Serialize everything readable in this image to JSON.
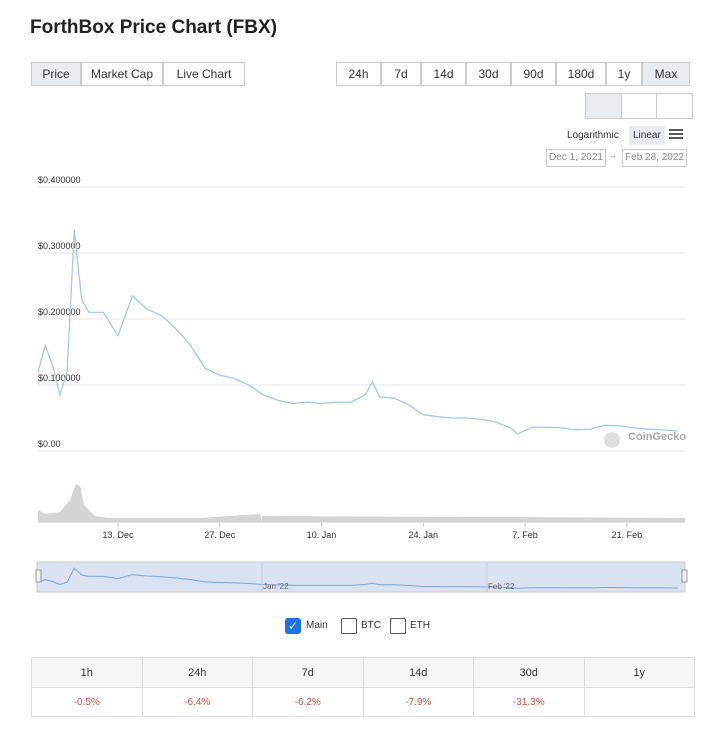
{
  "header": {
    "title": "ForthBox Price Chart (FBX)"
  },
  "tabs": [
    "Price",
    "Market Cap",
    "Live Chart"
  ],
  "ranges": [
    "24h",
    "7d",
    "14d",
    "30d",
    "90d",
    "180d",
    "1y",
    "Max"
  ],
  "scale": [
    "Logarithmic",
    "Linear"
  ],
  "date_range": {
    "from": "Dec 1, 2021",
    "to": "Feb 28, 2022"
  },
  "watermark": "CoinGecko",
  "navigator_labels": [
    "Jan '22",
    "Feb '22"
  ],
  "compare_options": [
    "BTC",
    "ETH"
  ],
  "chart_data": {
    "type": "line",
    "x": [
      "2021-12-02",
      "2021-12-03",
      "2021-12-04",
      "2021-12-05",
      "2021-12-06",
      "2021-12-07",
      "2021-12-08",
      "2021-12-09",
      "2021-12-10",
      "2021-12-11",
      "2021-12-13",
      "2021-12-15",
      "2021-12-17",
      "2021-12-19",
      "2021-12-21",
      "2021-12-23",
      "2021-12-25",
      "2021-12-27",
      "2021-12-29",
      "2021-12-31",
      "2022-01-02",
      "2022-01-04",
      "2022-01-06",
      "2022-01-08",
      "2022-01-10",
      "2022-01-12",
      "2022-01-14",
      "2022-01-16",
      "2022-01-17",
      "2022-01-18",
      "2022-01-20",
      "2022-01-22",
      "2022-01-24",
      "2022-01-26",
      "2022-01-28",
      "2022-01-30",
      "2022-02-01",
      "2022-02-03",
      "2022-02-05",
      "2022-02-06",
      "2022-02-08",
      "2022-02-10",
      "2022-02-12",
      "2022-02-14",
      "2022-02-16",
      "2022-02-18",
      "2022-02-20",
      "2022-02-22",
      "2022-02-24",
      "2022-02-26",
      "2022-02-28"
    ],
    "series": [
      {
        "name": "Main",
        "color": "#a5c8ee",
        "values": [
          0.12,
          0.16,
          0.13,
          0.085,
          0.12,
          0.335,
          0.23,
          0.21,
          0.21,
          0.21,
          0.175,
          0.235,
          0.215,
          0.205,
          0.185,
          0.16,
          0.125,
          0.115,
          0.11,
          0.1,
          0.085,
          0.077,
          0.072,
          0.074,
          0.072,
          0.074,
          0.074,
          0.085,
          0.105,
          0.082,
          0.08,
          0.07,
          0.055,
          0.052,
          0.05,
          0.05,
          0.048,
          0.044,
          0.035,
          0.026,
          0.036,
          0.036,
          0.035,
          0.032,
          0.033,
          0.039,
          0.038,
          0.035,
          0.033,
          0.032,
          0.03
        ]
      }
    ],
    "xlim": [
      "2021-12-02",
      "2022-03-01"
    ],
    "xticks": [
      {
        "value": "2021-12-13",
        "label": "13. Dec"
      },
      {
        "value": "2021-12-27",
        "label": "27. Dec"
      },
      {
        "value": "2022-01-10",
        "label": "10. Jan"
      },
      {
        "value": "2022-01-24",
        "label": "24. Jan"
      },
      {
        "value": "2022-02-07",
        "label": "7. Feb"
      },
      {
        "value": "2022-02-21",
        "label": "21. Feb"
      }
    ],
    "ylim": [
      0,
      0.4
    ],
    "yticks": [
      {
        "value": 0,
        "label": "$0.00"
      },
      {
        "value": 0.1,
        "label": "$0.100000"
      },
      {
        "value": 0.2,
        "label": "$0.200000"
      },
      {
        "value": 0.3,
        "label": "$0.300000"
      },
      {
        "value": 0.4,
        "label": "$0.400000"
      }
    ],
    "grid": true
  },
  "table": {
    "headers": [
      "1h",
      "24h",
      "7d",
      "14d",
      "30d",
      "1y"
    ],
    "changes": [
      "-0.5%",
      "-6.4%",
      "-6.2%",
      "-7.9%",
      "-31.3%"
    ]
  }
}
